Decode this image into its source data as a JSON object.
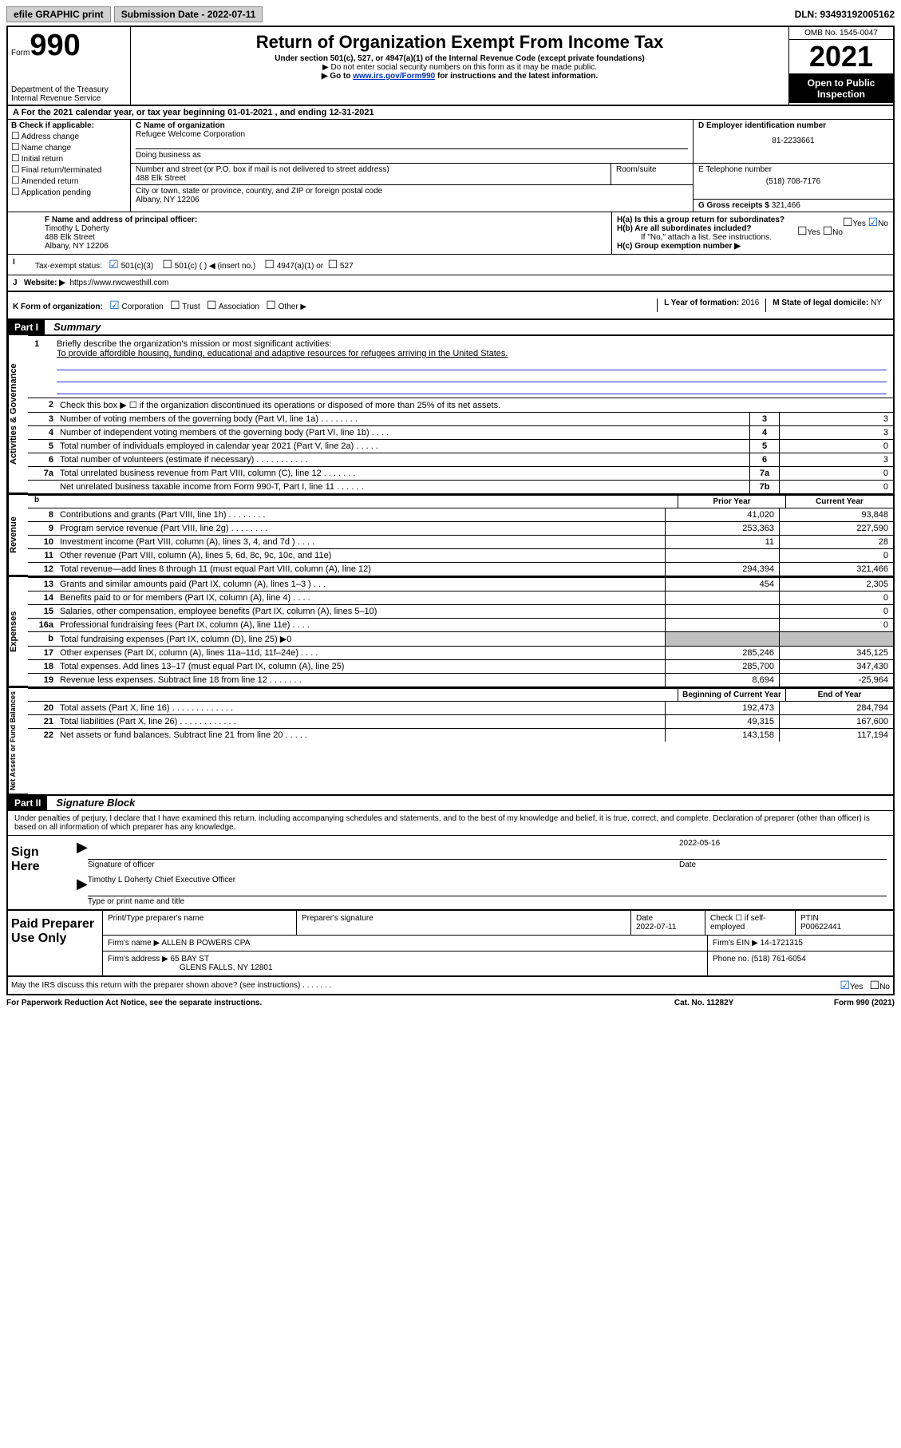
{
  "topbar": {
    "efile": "efile GRAPHIC print",
    "sub_label": "Submission Date - 2022-07-11",
    "dln": "DLN: 93493192005162"
  },
  "header": {
    "form_word": "Form",
    "form_no": "990",
    "dept": "Department of the Treasury",
    "irs": "Internal Revenue Service",
    "title": "Return of Organization Exempt From Income Tax",
    "sub1": "Under section 501(c), 527, or 4947(a)(1) of the Internal Revenue Code (except private foundations)",
    "sub2": "▶ Do not enter social security numbers on this form as it may be made public.",
    "sub3a": "▶ Go to ",
    "sub3_link": "www.irs.gov/Form990",
    "sub3b": " for instructions and the latest information.",
    "omb": "OMB No. 1545-0047",
    "year": "2021",
    "open": "Open to Public Inspection"
  },
  "period": {
    "prefix": "A For the 2021 calendar year, or tax year beginning ",
    "begin": "01-01-2021",
    "mid": " , and ending ",
    "end": "12-31-2021"
  },
  "colB": {
    "header": "B Check if applicable:",
    "items": [
      "Address change",
      "Name change",
      "Initial return",
      "Final return/terminated",
      "Amended return",
      "Application pending"
    ]
  },
  "colC": {
    "name_lbl": "C Name of organization",
    "name": "Refugee Welcome Corporation",
    "dba_lbl": "Doing business as",
    "street_lbl": "Number and street (or P.O. box if mail is not delivered to street address)",
    "room_lbl": "Room/suite",
    "street": "488 Elk Street",
    "city_lbl": "City or town, state or province, country, and ZIP or foreign postal code",
    "city": "Albany, NY  12206"
  },
  "colD": {
    "ein_lbl": "D Employer identification number",
    "ein": "81-2233661",
    "phone_lbl": "E Telephone number",
    "phone": "(518) 708-7176",
    "gross_lbl": "G Gross receipts $",
    "gross": "321,466"
  },
  "f_officer": {
    "lbl": "F Name and address of principal officer:",
    "name": "Timothy L Doherty",
    "street": "488 Elk Street",
    "city": "Albany, NY  12206"
  },
  "h": {
    "a_lbl": "H(a)  Is this a group return for subordinates?",
    "yes": "Yes",
    "no": "No",
    "b_lbl": "H(b)  Are all subordinates included?",
    "b_note": "If \"No,\" attach a list. See instructions.",
    "c_lbl": "H(c)  Group exemption number ▶"
  },
  "tax_exempt": {
    "i": "I",
    "lbl": "Tax-exempt status:",
    "o1": "501(c)(3)",
    "o2": "501(c) (   ) ◀ (insert no.)",
    "o3": "4947(a)(1) or",
    "o4": "527"
  },
  "website": {
    "j": "J",
    "lbl": "Website: ▶",
    "val": "https://www.rwcwesthill.com"
  },
  "k": {
    "lbl": "K Form of organization:",
    "opts": [
      "Corporation",
      "Trust",
      "Association",
      "Other ▶"
    ],
    "l_lbl": "L Year of formation:",
    "l_val": "2016",
    "m_lbl": "M State of legal domicile:",
    "m_val": "NY"
  },
  "partI": {
    "tag": "Part I",
    "title": "Summary"
  },
  "mission": {
    "num": "1",
    "lbl": "Briefly describe the organization's mission or most significant activities:",
    "text": "To provide affordible housing, funding, educational and adaptive resources for refugees arriving in the United States."
  },
  "gov_lines": [
    {
      "n": "2",
      "d": "Check this box ▶ ☐  if the organization discontinued its operations or disposed of more than 25% of its net assets."
    },
    {
      "n": "3",
      "d": "Number of voting members of the governing body (Part VI, line 1a)  .   .   .   .   .   .   .   .",
      "box": "3",
      "v": "3"
    },
    {
      "n": "4",
      "d": "Number of independent voting members of the governing body (Part VI, line 1b)   .   .   .   .",
      "box": "4",
      "v": "3"
    },
    {
      "n": "5",
      "d": "Total number of individuals employed in calendar year 2021 (Part V, line 2a)   .   .   .   .   .",
      "box": "5",
      "v": "0"
    },
    {
      "n": "6",
      "d": "Total number of volunteers (estimate if necessary)   .   .   .   .   .   .   .   .   .   .   .",
      "box": "6",
      "v": "3"
    },
    {
      "n": "7a",
      "d": "Total unrelated business revenue from Part VIII, column (C), line 12   .   .   .   .   .   .   .",
      "box": "7a",
      "v": "0"
    },
    {
      "n": "",
      "d": "Net unrelated business taxable income from Form 990-T, Part I, line 11   .   .   .   .   .   .",
      "box": "7b",
      "v": "0"
    }
  ],
  "col_headers": {
    "b": "b",
    "prior": "Prior Year",
    "curr": "Current Year",
    "bocy": "Beginning of Current Year",
    "eoy": "End of Year"
  },
  "revenue": [
    {
      "n": "8",
      "d": "Contributions and grants (Part VIII, line 1h)   .   .   .   .   .   .   .   .",
      "p": "41,020",
      "c": "93,848"
    },
    {
      "n": "9",
      "d": "Program service revenue (Part VIII, line 2g)   .   .   .   .   .   .   .   .",
      "p": "253,363",
      "c": "227,590"
    },
    {
      "n": "10",
      "d": "Investment income (Part VIII, column (A), lines 3, 4, and 7d )   .   .   .   .",
      "p": "11",
      "c": "28"
    },
    {
      "n": "11",
      "d": "Other revenue (Part VIII, column (A), lines 5, 6d, 8c, 9c, 10c, and 11e)",
      "p": "",
      "c": "0"
    },
    {
      "n": "12",
      "d": "Total revenue—add lines 8 through 11 (must equal Part VIII, column (A), line 12)",
      "p": "294,394",
      "c": "321,466"
    }
  ],
  "expenses": [
    {
      "n": "13",
      "d": "Grants and similar amounts paid (Part IX, column (A), lines 1–3 )   .   .   .",
      "p": "454",
      "c": "2,305"
    },
    {
      "n": "14",
      "d": "Benefits paid to or for members (Part IX, column (A), line 4)   .   .   .   .",
      "p": "",
      "c": "0"
    },
    {
      "n": "15",
      "d": "Salaries, other compensation, employee benefits (Part IX, column (A), lines 5–10)",
      "p": "",
      "c": "0"
    },
    {
      "n": "16a",
      "d": "Professional fundraising fees (Part IX, column (A), line 11e)   .   .   .   .",
      "p": "",
      "c": "0"
    },
    {
      "n": "b",
      "d": "Total fundraising expenses (Part IX, column (D), line 25) ▶0",
      "shaded": true
    },
    {
      "n": "17",
      "d": "Other expenses (Part IX, column (A), lines 11a–11d, 11f–24e)   .   .   .   .",
      "p": "285,246",
      "c": "345,125"
    },
    {
      "n": "18",
      "d": "Total expenses. Add lines 13–17 (must equal Part IX, column (A), line 25)",
      "p": "285,700",
      "c": "347,430"
    },
    {
      "n": "19",
      "d": "Revenue less expenses. Subtract line 18 from line 12   .   .   .   .   .   .   .",
      "p": "8,694",
      "c": "-25,964"
    }
  ],
  "netassets": [
    {
      "n": "20",
      "d": "Total assets (Part X, line 16)   .   .   .   .   .   .   .   .   .   .   .   .   .",
      "p": "192,473",
      "c": "284,794"
    },
    {
      "n": "21",
      "d": "Total liabilities (Part X, line 26)   .   .   .   .   .   .   .   .   .   .   .   .",
      "p": "49,315",
      "c": "167,600"
    },
    {
      "n": "22",
      "d": "Net assets or fund balances. Subtract line 21 from line 20   .   .   .   .   .",
      "p": "143,158",
      "c": "117,194"
    }
  ],
  "side_labels": {
    "gov": "Activities & Governance",
    "rev": "Revenue",
    "exp": "Expenses",
    "na": "Net Assets or Fund Balances"
  },
  "partII": {
    "tag": "Part II",
    "title": "Signature Block",
    "text": "Under penalties of perjury, I declare that I have examined this return, including accompanying schedules and statements, and to the best of my knowledge and belief, it is true, correct, and complete. Declaration of preparer (other than officer) is based on all information of which preparer has any knowledge."
  },
  "sign": {
    "here": "Sign Here",
    "sig_lbl": "Signature of officer",
    "date": "2022-05-16",
    "date_lbl": "Date",
    "name": "Timothy L Doherty  Chief Executive Officer",
    "type_lbl": "Type or print name and title"
  },
  "paid": {
    "lbl": "Paid Preparer Use Only",
    "h1": "Print/Type preparer's name",
    "h2": "Preparer's signature",
    "h3": "Date",
    "h3v": "2022-07-11",
    "h4": "Check ☐ if self-employed",
    "h5": "PTIN",
    "h5v": "P00622441",
    "firm_name_lbl": "Firm's name    ▶",
    "firm_name": "ALLEN B POWERS CPA",
    "firm_ein_lbl": "Firm's EIN ▶",
    "firm_ein": "14-1721315",
    "firm_addr_lbl": "Firm's address ▶",
    "firm_addr1": "65 BAY ST",
    "firm_addr2": "GLENS FALLS, NY  12801",
    "phone_lbl": "Phone no.",
    "phone": "(518) 761-6054"
  },
  "footer": {
    "discuss": "May the IRS discuss this return with the preparer shown above? (see instructions)   .   .   .   .   .   .   .",
    "yes": "Yes",
    "no": "No",
    "pra": "For Paperwork Reduction Act Notice, see the separate instructions.",
    "cat": "Cat. No. 11282Y",
    "form": "Form 990 (2021)"
  }
}
